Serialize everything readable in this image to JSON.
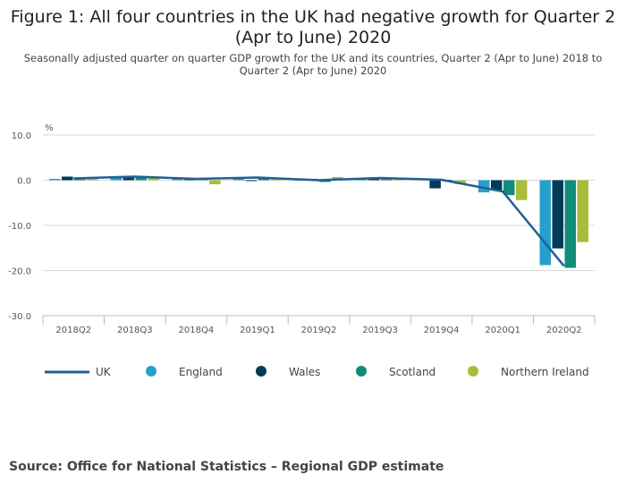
{
  "chart_data": {
    "type": "bar",
    "title": "Figure 1: All four countries in the UK had negative growth for Quarter 2 (Apr to June) 2020",
    "subtitle": "Seasonally adjusted quarter on quarter GDP growth for the UK and its countries, Quarter 2 (Apr to June) 2018 to Quarter 2 (Apr to June) 2020",
    "ylabel": "%",
    "ylim": [
      -30,
      10
    ],
    "yticks": [
      "10.0",
      "0.0",
      "-10.0",
      "-20.0",
      "-30.0"
    ],
    "ytick_values": [
      10,
      0,
      -10,
      -20,
      -30
    ],
    "grid": true,
    "legend_position": "bottom",
    "categories": [
      "2018Q2",
      "2018Q3",
      "2018Q4",
      "2019Q1",
      "2019Q2",
      "2019Q3",
      "2019Q4",
      "2020Q1",
      "2020Q2"
    ],
    "line_series": {
      "name": "UK",
      "color": "#206095",
      "values": [
        0.4,
        0.8,
        0.3,
        0.6,
        0.0,
        0.5,
        0.1,
        -2.5,
        -19.0
      ]
    },
    "series": [
      {
        "name": "England",
        "color": "#27a0cc",
        "values": [
          0.3,
          0.7,
          0.3,
          0.6,
          -0.1,
          0.5,
          0.1,
          -2.7,
          -18.8
        ]
      },
      {
        "name": "Wales",
        "color": "#003c57",
        "values": [
          0.8,
          0.6,
          0.3,
          -0.2,
          0.3,
          0.6,
          -1.8,
          -2.3,
          -15.1
        ]
      },
      {
        "name": "Scotland",
        "color": "#118c7b",
        "values": [
          0.5,
          0.5,
          0.4,
          0.5,
          -0.4,
          0.2,
          0.1,
          -3.3,
          -19.4
        ]
      },
      {
        "name": "Northern Ireland",
        "color": "#a8bd3a",
        "values": [
          0.4,
          0.6,
          -0.9,
          0.2,
          0.7,
          0.3,
          -0.9,
          -4.4,
          -13.7
        ]
      }
    ]
  },
  "source": "Source: Office for National Statistics – Regional GDP estimate"
}
